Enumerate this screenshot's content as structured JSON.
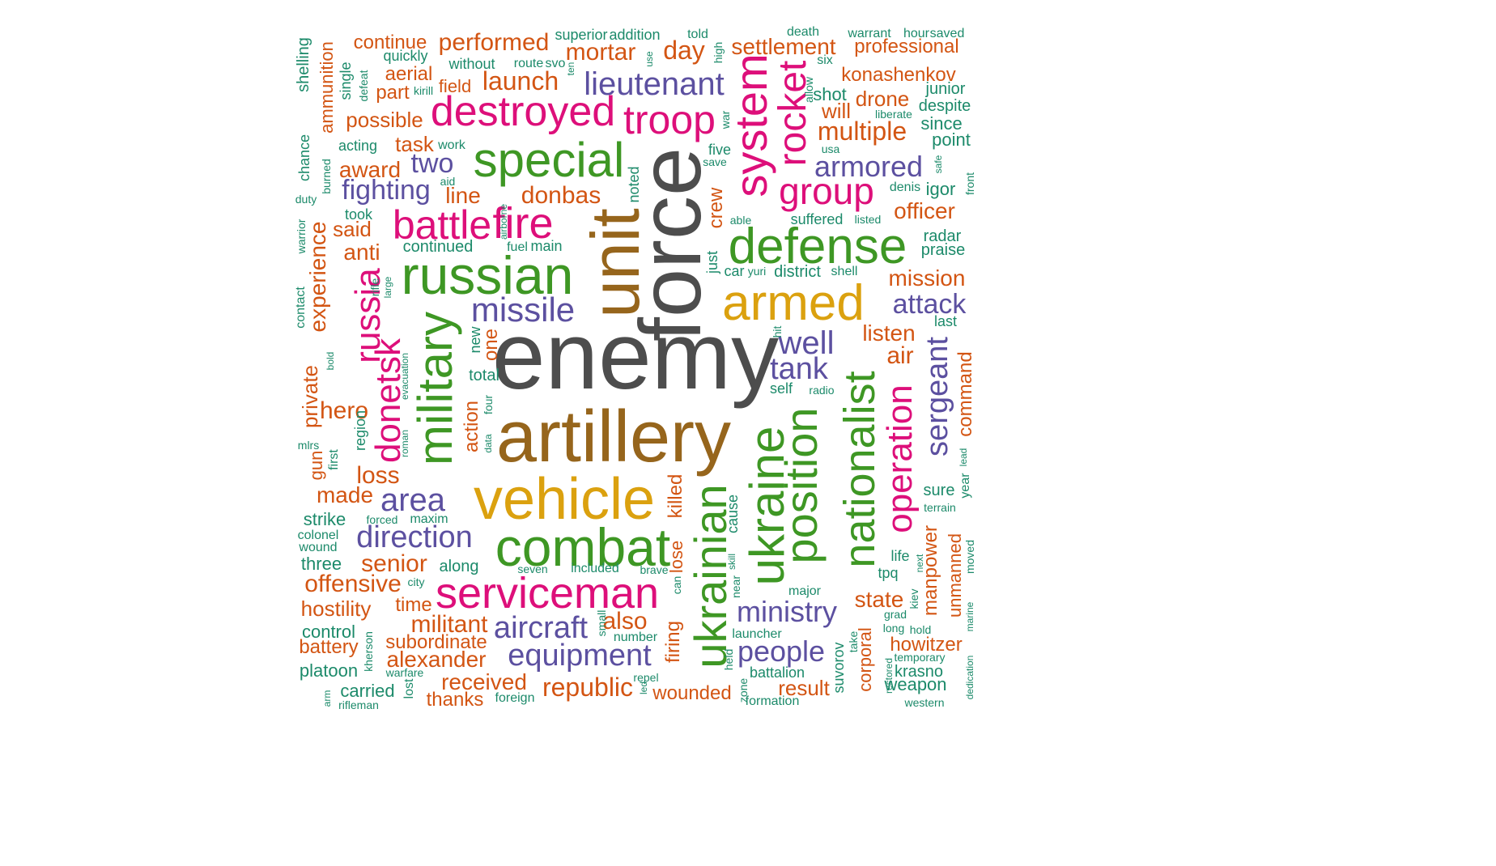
{
  "palette": {
    "grey": "#4d4d4d",
    "brown": "#96651c",
    "gold": "#dba10f",
    "green": "#3e9724",
    "magenta": "#dd0f7a",
    "purple": "#5c50a0",
    "orange": "#d35513",
    "teal": "#1c8a6a"
  },
  "words": [
    {
      "t": "enemy",
      "c": "grey"
    },
    {
      "t": "force",
      "c": "grey"
    },
    {
      "t": "artillery",
      "c": "brown"
    },
    {
      "t": "unit",
      "c": "brown"
    },
    {
      "t": "vehicle",
      "c": "gold"
    },
    {
      "t": "armed",
      "c": "gold"
    },
    {
      "t": "combat",
      "c": "green"
    },
    {
      "t": "russian",
      "c": "green"
    },
    {
      "t": "defense",
      "c": "green"
    },
    {
      "t": "special",
      "c": "green"
    },
    {
      "t": "military",
      "c": "green"
    },
    {
      "t": "ukraine",
      "c": "green"
    },
    {
      "t": "ukrainian",
      "c": "green"
    },
    {
      "t": "position",
      "c": "green"
    },
    {
      "t": "nationalist",
      "c": "green"
    },
    {
      "t": "serviceman",
      "c": "magenta"
    },
    {
      "t": "destroyed",
      "c": "magenta"
    },
    {
      "t": "fire",
      "c": "magenta"
    },
    {
      "t": "battle",
      "c": "magenta"
    },
    {
      "t": "troop",
      "c": "magenta"
    },
    {
      "t": "system",
      "c": "magenta"
    },
    {
      "t": "group",
      "c": "magenta"
    },
    {
      "t": "rocket",
      "c": "magenta"
    },
    {
      "t": "operation",
      "c": "magenta"
    },
    {
      "t": "russia",
      "c": "magenta"
    },
    {
      "t": "donetsk",
      "c": "magenta"
    },
    {
      "t": "missile",
      "c": "purple"
    },
    {
      "t": "area",
      "c": "purple"
    },
    {
      "t": "direction",
      "c": "purple"
    },
    {
      "t": "aircraft",
      "c": "purple"
    },
    {
      "t": "equipment",
      "c": "purple"
    },
    {
      "t": "lieutenant",
      "c": "purple"
    },
    {
      "t": "ministry",
      "c": "purple"
    },
    {
      "t": "people",
      "c": "purple"
    },
    {
      "t": "attack",
      "c": "purple"
    },
    {
      "t": "armored",
      "c": "purple"
    },
    {
      "t": "sergeant",
      "c": "purple"
    },
    {
      "t": "tank",
      "c": "purple"
    },
    {
      "t": "well",
      "c": "purple"
    },
    {
      "t": "fighting",
      "c": "purple"
    },
    {
      "t": "two",
      "c": "purple"
    },
    {
      "t": "mortar",
      "c": "orange"
    },
    {
      "t": "day",
      "c": "orange"
    },
    {
      "t": "performed",
      "c": "orange"
    },
    {
      "t": "launch",
      "c": "orange"
    },
    {
      "t": "settlement",
      "c": "orange"
    },
    {
      "t": "professional",
      "c": "orange"
    },
    {
      "t": "continue",
      "c": "orange"
    },
    {
      "t": "aerial",
      "c": "orange"
    },
    {
      "t": "part",
      "c": "orange"
    },
    {
      "t": "possible",
      "c": "orange"
    },
    {
      "t": "konashenkov",
      "c": "orange"
    },
    {
      "t": "drone",
      "c": "orange"
    },
    {
      "t": "will",
      "c": "orange"
    },
    {
      "t": "multiple",
      "c": "orange"
    },
    {
      "t": "donbas",
      "c": "orange"
    },
    {
      "t": "award",
      "c": "orange"
    },
    {
      "t": "task",
      "c": "orange"
    },
    {
      "t": "line",
      "c": "orange"
    },
    {
      "t": "officer",
      "c": "orange"
    },
    {
      "t": "mission",
      "c": "orange"
    },
    {
      "t": "listen",
      "c": "orange"
    },
    {
      "t": "air",
      "c": "orange"
    },
    {
      "t": "anti",
      "c": "orange"
    },
    {
      "t": "said",
      "c": "orange"
    },
    {
      "t": "experience",
      "c": "orange"
    },
    {
      "t": "hero",
      "c": "orange"
    },
    {
      "t": "private",
      "c": "orange"
    },
    {
      "t": "loss",
      "c": "orange"
    },
    {
      "t": "made",
      "c": "orange"
    },
    {
      "t": "senior",
      "c": "orange"
    },
    {
      "t": "offensive",
      "c": "orange"
    },
    {
      "t": "hostility",
      "c": "orange"
    },
    {
      "t": "time",
      "c": "orange"
    },
    {
      "t": "militant",
      "c": "orange"
    },
    {
      "t": "subordinate",
      "c": "orange"
    },
    {
      "t": "alexander",
      "c": "orange"
    },
    {
      "t": "received",
      "c": "orange"
    },
    {
      "t": "thanks",
      "c": "orange"
    },
    {
      "t": "republic",
      "c": "orange"
    },
    {
      "t": "also",
      "c": "orange"
    },
    {
      "t": "wounded",
      "c": "orange"
    },
    {
      "t": "result",
      "c": "orange"
    },
    {
      "t": "state",
      "c": "orange"
    },
    {
      "t": "howitzer",
      "c": "orange"
    },
    {
      "t": "corporal",
      "c": "orange"
    },
    {
      "t": "manpower",
      "c": "orange"
    },
    {
      "t": "unmanned",
      "c": "orange"
    },
    {
      "t": "command",
      "c": "orange"
    },
    {
      "t": "battery",
      "c": "orange"
    },
    {
      "t": "action",
      "c": "orange"
    },
    {
      "t": "one",
      "c": "orange"
    },
    {
      "t": "killed",
      "c": "orange"
    },
    {
      "t": "firing",
      "c": "orange"
    },
    {
      "t": "lose",
      "c": "orange"
    },
    {
      "t": "crew",
      "c": "orange"
    },
    {
      "t": "ammunition",
      "c": "orange"
    },
    {
      "t": "gun",
      "c": "orange"
    },
    {
      "t": "field",
      "c": "orange"
    },
    {
      "t": "superior",
      "c": "teal"
    },
    {
      "t": "addition",
      "c": "teal"
    },
    {
      "t": "told",
      "c": "teal"
    },
    {
      "t": "death",
      "c": "teal"
    },
    {
      "t": "warrant",
      "c": "teal"
    },
    {
      "t": "hour",
      "c": "teal"
    },
    {
      "t": "saved",
      "c": "teal"
    },
    {
      "t": "quickly",
      "c": "teal"
    },
    {
      "t": "without",
      "c": "teal"
    },
    {
      "t": "route",
      "c": "teal"
    },
    {
      "t": "svo",
      "c": "teal"
    },
    {
      "t": "six",
      "c": "teal"
    },
    {
      "t": "kirill",
      "c": "teal"
    },
    {
      "t": "shot",
      "c": "teal"
    },
    {
      "t": "liberate",
      "c": "teal"
    },
    {
      "t": "junior",
      "c": "teal"
    },
    {
      "t": "despite",
      "c": "teal"
    },
    {
      "t": "since",
      "c": "teal"
    },
    {
      "t": "point",
      "c": "teal"
    },
    {
      "t": "acting",
      "c": "teal"
    },
    {
      "t": "work",
      "c": "teal"
    },
    {
      "t": "usa",
      "c": "teal"
    },
    {
      "t": "five",
      "c": "teal"
    },
    {
      "t": "save",
      "c": "teal"
    },
    {
      "t": "aid",
      "c": "teal"
    },
    {
      "t": "denis",
      "c": "teal"
    },
    {
      "t": "igor",
      "c": "teal"
    },
    {
      "t": "took",
      "c": "teal"
    },
    {
      "t": "able",
      "c": "teal"
    },
    {
      "t": "suffered",
      "c": "teal"
    },
    {
      "t": "listed",
      "c": "teal"
    },
    {
      "t": "radar",
      "c": "teal"
    },
    {
      "t": "praise",
      "c": "teal"
    },
    {
      "t": "continued",
      "c": "teal"
    },
    {
      "t": "fuel",
      "c": "teal"
    },
    {
      "t": "main",
      "c": "teal"
    },
    {
      "t": "car",
      "c": "teal"
    },
    {
      "t": "yuri",
      "c": "teal"
    },
    {
      "t": "district",
      "c": "teal"
    },
    {
      "t": "shell",
      "c": "teal"
    },
    {
      "t": "last",
      "c": "teal"
    },
    {
      "t": "total",
      "c": "teal"
    },
    {
      "t": "self",
      "c": "teal"
    },
    {
      "t": "radio",
      "c": "teal"
    },
    {
      "t": "strike",
      "c": "teal"
    },
    {
      "t": "forced",
      "c": "teal"
    },
    {
      "t": "maxim",
      "c": "teal"
    },
    {
      "t": "sure",
      "c": "teal"
    },
    {
      "t": "terrain",
      "c": "teal"
    },
    {
      "t": "colonel",
      "c": "teal"
    },
    {
      "t": "wound",
      "c": "teal"
    },
    {
      "t": "three",
      "c": "teal"
    },
    {
      "t": "along",
      "c": "teal"
    },
    {
      "t": "seven",
      "c": "teal"
    },
    {
      "t": "included",
      "c": "teal"
    },
    {
      "t": "brave",
      "c": "teal"
    },
    {
      "t": "city",
      "c": "teal"
    },
    {
      "t": "life",
      "c": "teal"
    },
    {
      "t": "tpq",
      "c": "teal"
    },
    {
      "t": "major",
      "c": "teal"
    },
    {
      "t": "grad",
      "c": "teal"
    },
    {
      "t": "long",
      "c": "teal"
    },
    {
      "t": "hold",
      "c": "teal"
    },
    {
      "t": "control",
      "c": "teal"
    },
    {
      "t": "launcher",
      "c": "teal"
    },
    {
      "t": "number",
      "c": "teal"
    },
    {
      "t": "temporary",
      "c": "teal"
    },
    {
      "t": "platoon",
      "c": "teal"
    },
    {
      "t": "warfare",
      "c": "teal"
    },
    {
      "t": "repel",
      "c": "teal"
    },
    {
      "t": "battalion",
      "c": "teal"
    },
    {
      "t": "krasno",
      "c": "teal"
    },
    {
      "t": "weapon",
      "c": "teal"
    },
    {
      "t": "carried",
      "c": "teal"
    },
    {
      "t": "foreign",
      "c": "teal"
    },
    {
      "t": "formation",
      "c": "teal"
    },
    {
      "t": "western",
      "c": "teal"
    },
    {
      "t": "rifleman",
      "c": "teal"
    },
    {
      "t": "shelling",
      "c": "teal"
    },
    {
      "t": "single",
      "c": "teal"
    },
    {
      "t": "defeat",
      "c": "teal"
    },
    {
      "t": "chance",
      "c": "teal"
    },
    {
      "t": "burned",
      "c": "teal"
    },
    {
      "t": "duty",
      "c": "teal"
    },
    {
      "t": "warrior",
      "c": "teal"
    },
    {
      "t": "contact",
      "c": "teal"
    },
    {
      "t": "bold",
      "c": "teal"
    },
    {
      "t": "rifle",
      "c": "teal"
    },
    {
      "t": "large",
      "c": "teal"
    },
    {
      "t": "evacuation",
      "c": "teal"
    },
    {
      "t": "new",
      "c": "teal"
    },
    {
      "t": "region",
      "c": "teal"
    },
    {
      "t": "mlrs",
      "c": "teal"
    },
    {
      "t": "first",
      "c": "teal"
    },
    {
      "t": "roman",
      "c": "teal"
    },
    {
      "t": "data",
      "c": "teal"
    },
    {
      "t": "four",
      "c": "teal"
    },
    {
      "t": "airborne",
      "c": "teal"
    },
    {
      "t": "noted",
      "c": "teal"
    },
    {
      "t": "use",
      "c": "teal"
    },
    {
      "t": "ten",
      "c": "teal"
    },
    {
      "t": "high",
      "c": "teal"
    },
    {
      "t": "war",
      "c": "teal"
    },
    {
      "t": "allow",
      "c": "teal"
    },
    {
      "t": "safe",
      "c": "teal"
    },
    {
      "t": "front",
      "c": "teal"
    },
    {
      "t": "just",
      "c": "teal"
    },
    {
      "t": "hit",
      "c": "teal"
    },
    {
      "t": "cause",
      "c": "teal"
    },
    {
      "t": "skill",
      "c": "teal"
    },
    {
      "t": "near",
      "c": "teal"
    },
    {
      "t": "can",
      "c": "teal"
    },
    {
      "t": "small",
      "c": "teal"
    },
    {
      "t": "held",
      "c": "teal"
    },
    {
      "t": "zone",
      "c": "teal"
    },
    {
      "t": "led",
      "c": "teal"
    },
    {
      "t": "suvorov",
      "c": "teal"
    },
    {
      "t": "take",
      "c": "teal"
    },
    {
      "t": "restored",
      "c": "teal"
    },
    {
      "t": "kiev",
      "c": "teal"
    },
    {
      "t": "next",
      "c": "teal"
    },
    {
      "t": "lead",
      "c": "teal"
    },
    {
      "t": "year",
      "c": "teal"
    },
    {
      "t": "moved",
      "c": "teal"
    },
    {
      "t": "marine",
      "c": "teal"
    },
    {
      "t": "dedication",
      "c": "teal"
    },
    {
      "t": "kherson",
      "c": "teal"
    },
    {
      "t": "lost",
      "c": "teal"
    },
    {
      "t": "arm",
      "c": "teal"
    }
  ]
}
